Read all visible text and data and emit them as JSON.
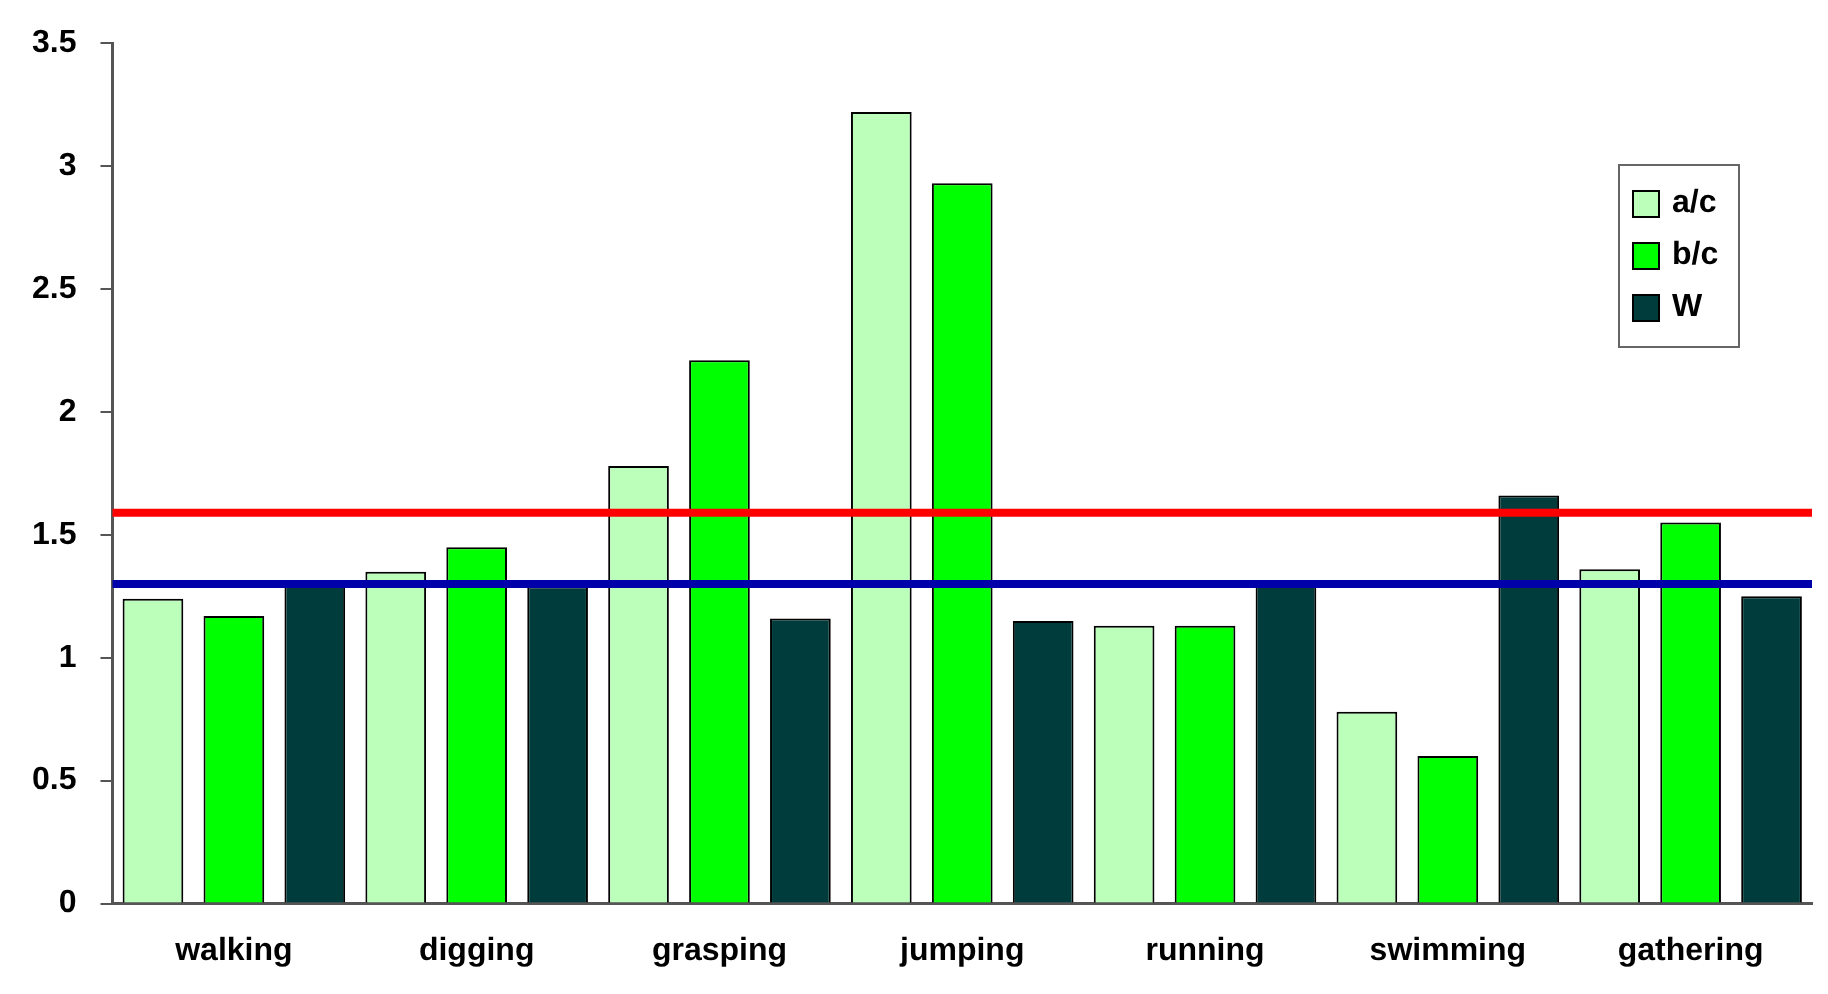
{
  "chart_data": {
    "type": "bar",
    "categories": [
      "walking",
      "digging",
      "grasping",
      "jumping",
      "running",
      "swimming",
      "gathering"
    ],
    "series": [
      {
        "name": "a/c",
        "color": "#bbffbb",
        "values": [
          1.24,
          1.35,
          1.78,
          3.22,
          1.13,
          0.78,
          1.36
        ]
      },
      {
        "name": "b/c",
        "color": "#00ff00",
        "values": [
          1.17,
          1.45,
          2.21,
          2.93,
          1.13,
          0.6,
          1.55
        ]
      },
      {
        "name": "W",
        "color": "#003c3c",
        "values": [
          1.3,
          1.29,
          1.16,
          1.15,
          1.3,
          1.66,
          1.25
        ]
      }
    ],
    "ylim": [
      0,
      3.5
    ],
    "yticks": [
      0,
      0.5,
      1,
      1.5,
      2,
      2.5,
      3,
      3.5
    ],
    "ref_lines": [
      {
        "axis": "y",
        "value": 1.59,
        "color": "#ff0000"
      },
      {
        "axis": "y",
        "value": 1.3,
        "color": "#0000aa"
      }
    ],
    "grid": false,
    "legend": "top right"
  }
}
